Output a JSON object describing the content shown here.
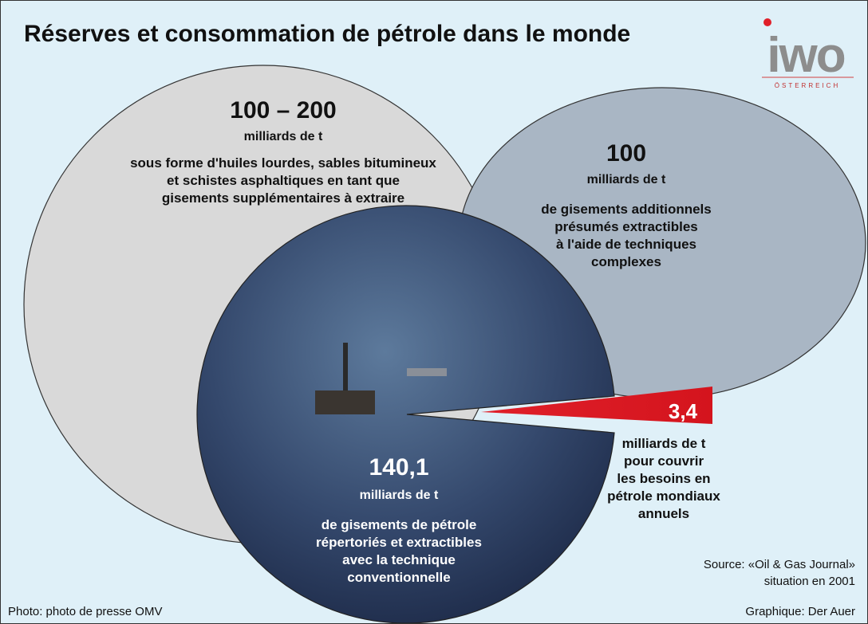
{
  "header": {
    "title": "Réserves et consommation de pétrole dans le monde"
  },
  "logo": {
    "brand": "iwo",
    "country": "ÖSTERREICH"
  },
  "circles": [
    {
      "value": "100 – 200",
      "unit": "milliards de t",
      "description": [
        "sous forme d'huiles lourdes, sables bitumineux",
        "et schistes asphaltiques en tant que",
        "gisements supplémentaires à extraire"
      ]
    },
    {
      "value": "100",
      "unit": "milliards de t",
      "description": [
        "de gisements additionnels",
        "présumés extractibles",
        "à l'aide de techniques",
        "complexes"
      ]
    },
    {
      "value": "140,1",
      "unit": "milliards de t",
      "description": [
        "de gisements de pétrole",
        "répertoriés et extractibles",
        "avec la technique",
        "conventionnelle"
      ]
    }
  ],
  "consumption": {
    "value": "3,4",
    "description": [
      "milliards de t",
      "pour couvrir",
      "les besoins en",
      "pétrole mondiaux",
      "annuels"
    ]
  },
  "source": [
    "Source: «Oil & Gas Journal»",
    "situation en 2001"
  ],
  "photo_credit": "Photo: photo de presse OMV",
  "graphic_credit": "Graphique: Der Auer"
}
